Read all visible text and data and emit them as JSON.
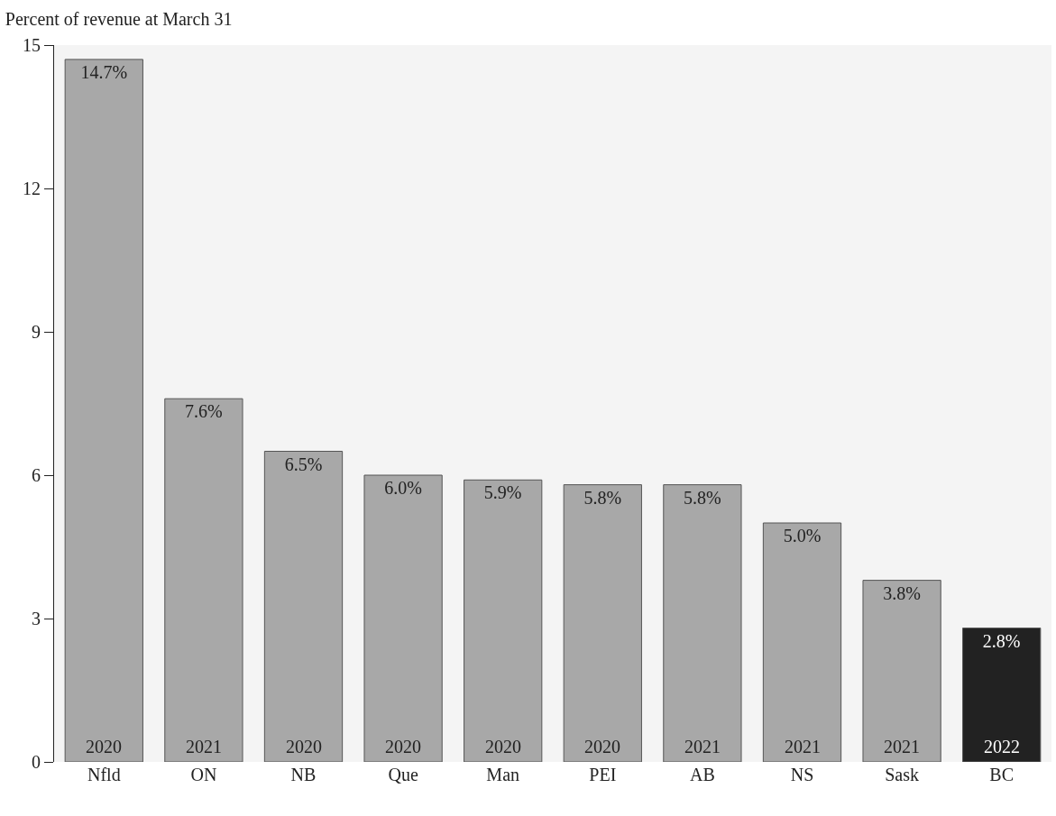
{
  "chart_data": {
    "type": "bar",
    "title": "Percent of revenue at March 31",
    "categories": [
      "Nfld",
      "ON",
      "NB",
      "Que",
      "Man",
      "PEI",
      "AB",
      "NS",
      "Sask",
      "BC"
    ],
    "values": [
      14.7,
      7.6,
      6.5,
      6.0,
      5.9,
      5.8,
      5.8,
      5.0,
      3.8,
      2.8
    ],
    "value_labels": [
      "14.7%",
      "7.6%",
      "6.5%",
      "6.0%",
      "5.9%",
      "5.8%",
      "5.8%",
      "5.0%",
      "3.8%",
      "2.8%"
    ],
    "colors": [
      "#a8a8a8",
      "#a8a8a8",
      "#a8a8a8",
      "#a8a8a8",
      "#a8a8a8",
      "#a8a8a8",
      "#a8a8a8",
      "#a8a8a8",
      "#a8a8a8",
      "#222222"
    ],
    "ylim": [
      0,
      15
    ],
    "yticks": [
      0,
      3,
      6,
      9,
      12,
      15
    ],
    "grid": false,
    "legend": false,
    "annotations": [
      "2020",
      "2021",
      "2020",
      "2020",
      "2020",
      "2020",
      "2021",
      "2021",
      "2021",
      "2022"
    ]
  }
}
